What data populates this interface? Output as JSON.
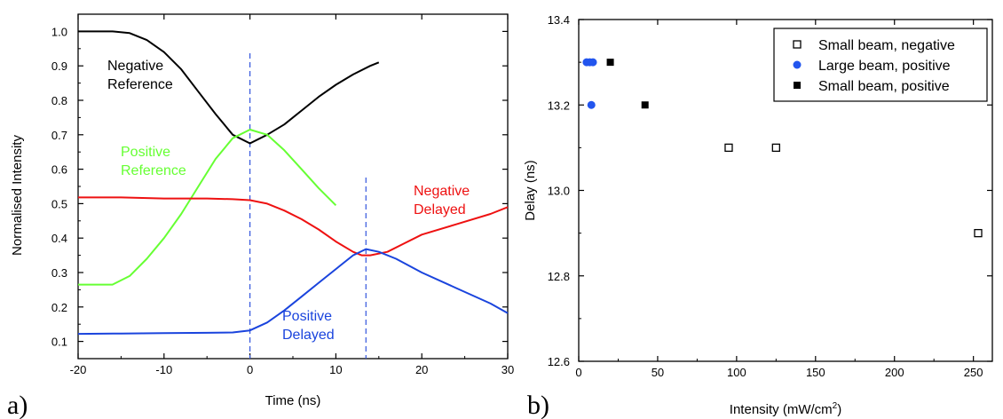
{
  "chart_data": [
    {
      "type": "line",
      "panel_label": "a)",
      "xlabel": "Time (ns)",
      "ylabel": "Normalised Intensity",
      "xlim": [
        -20,
        30
      ],
      "ylim": [
        0.05,
        1.05
      ],
      "xticks": [
        -20,
        -10,
        0,
        10,
        20,
        30
      ],
      "xtick_labels": [
        "-20",
        "-10",
        "0",
        "10",
        "20",
        "30"
      ],
      "yticks": [
        0.1,
        0.2,
        0.3,
        0.4,
        0.5,
        0.6,
        0.7,
        0.8,
        0.9,
        1.0
      ],
      "ytick_labels": [
        "0.1",
        "0.2",
        "0.3",
        "0.4",
        "0.5",
        "0.6",
        "0.7",
        "0.8",
        "0.9",
        "1.0"
      ],
      "vlines": [
        0,
        13.5
      ],
      "series": [
        {
          "color": "#000000",
          "annotation": [
            "Negative",
            "Reference"
          ],
          "x": [
            -20,
            -18,
            -16,
            -14,
            -12,
            -10,
            -8,
            -6,
            -4,
            -2,
            0,
            2,
            4,
            6,
            8,
            10,
            12,
            14,
            15
          ],
          "y": [
            1.0,
            1.0,
            1.0,
            0.995,
            0.975,
            0.94,
            0.89,
            0.825,
            0.76,
            0.7,
            0.675,
            0.7,
            0.73,
            0.77,
            0.81,
            0.845,
            0.875,
            0.9,
            0.91
          ]
        },
        {
          "color": "#66ff33",
          "annotation": [
            "Positive",
            "Reference"
          ],
          "x": [
            -20,
            -18,
            -16,
            -14,
            -12,
            -10,
            -8,
            -6,
            -4,
            -2,
            0,
            2,
            4,
            6,
            8,
            10
          ],
          "y": [
            0.265,
            0.265,
            0.265,
            0.29,
            0.34,
            0.4,
            0.47,
            0.55,
            0.63,
            0.69,
            0.715,
            0.7,
            0.655,
            0.6,
            0.545,
            0.495
          ]
        },
        {
          "color": "#ee1111",
          "annotation": [
            "Negative",
            "Delayed"
          ],
          "x": [
            -20,
            -15,
            -10,
            -5,
            -2,
            0,
            2,
            4,
            6,
            8,
            10,
            12,
            13,
            14,
            16,
            18,
            20,
            24,
            28,
            30
          ],
          "y": [
            0.518,
            0.518,
            0.515,
            0.515,
            0.513,
            0.51,
            0.5,
            0.48,
            0.455,
            0.425,
            0.39,
            0.36,
            0.35,
            0.35,
            0.36,
            0.385,
            0.41,
            0.44,
            0.47,
            0.49
          ]
        },
        {
          "color": "#1a44dd",
          "annotation": [
            "Positive",
            "Delayed"
          ],
          "x": [
            -20,
            -15,
            -10,
            -5,
            -2,
            0,
            2,
            4,
            6,
            8,
            10,
            12,
            13.5,
            15,
            17,
            20,
            24,
            28,
            30
          ],
          "y": [
            0.122,
            0.123,
            0.124,
            0.125,
            0.126,
            0.132,
            0.155,
            0.19,
            0.23,
            0.27,
            0.31,
            0.35,
            0.368,
            0.36,
            0.34,
            0.3,
            0.255,
            0.21,
            0.182
          ]
        }
      ]
    },
    {
      "type": "scatter",
      "panel_label": "b)",
      "xlabel": "Intensity (mW/cm",
      "xlabel_sup": "2",
      "xlabel_tail": ")",
      "ylabel": "Delay (ns)",
      "xlim": [
        0,
        262
      ],
      "ylim": [
        12.6,
        13.4
      ],
      "xticks": [
        0,
        50,
        100,
        150,
        200,
        250
      ],
      "xtick_labels": [
        "0",
        "50",
        "100",
        "150",
        "200",
        "250"
      ],
      "yticks": [
        12.6,
        12.8,
        13.0,
        13.2,
        13.4
      ],
      "ytick_labels": [
        "12.6",
        "12.8",
        "13.0",
        "13.2",
        "13.4"
      ],
      "series": [
        {
          "name": "Small beam, negative",
          "marker": "open-square",
          "color": "#000000",
          "points": [
            [
              95,
              13.1
            ],
            [
              125,
              13.1
            ],
            [
              253,
              12.9
            ]
          ]
        },
        {
          "name": "Large beam, positive",
          "marker": "circle",
          "color": "#2255ee",
          "points": [
            [
              5,
              13.3
            ],
            [
              7,
              13.3
            ],
            [
              9,
              13.3
            ],
            [
              8,
              13.2
            ]
          ]
        },
        {
          "name": "Small beam, positive",
          "marker": "filled-square",
          "color": "#000000",
          "points": [
            [
              20,
              13.3
            ],
            [
              42,
              13.2
            ]
          ]
        }
      ],
      "legend_position": "top-right"
    }
  ]
}
